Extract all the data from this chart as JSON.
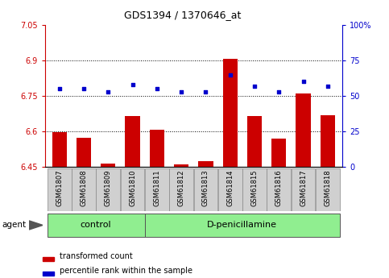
{
  "title": "GDS1394 / 1370646_at",
  "samples": [
    "GSM61807",
    "GSM61808",
    "GSM61809",
    "GSM61810",
    "GSM61811",
    "GSM61812",
    "GSM61813",
    "GSM61814",
    "GSM61815",
    "GSM61816",
    "GSM61817",
    "GSM61818"
  ],
  "red_values": [
    6.597,
    6.572,
    6.462,
    6.665,
    6.607,
    6.461,
    6.475,
    6.907,
    6.665,
    6.57,
    6.762,
    6.667
  ],
  "blue_values": [
    55,
    55,
    53,
    58,
    55,
    53,
    53,
    65,
    57,
    53,
    60,
    57
  ],
  "ylim_left": [
    6.45,
    7.05
  ],
  "ylim_right": [
    0,
    100
  ],
  "yticks_left": [
    6.45,
    6.6,
    6.75,
    6.9,
    7.05
  ],
  "yticks_right": [
    0,
    25,
    50,
    75,
    100
  ],
  "ytick_labels_left": [
    "6.45",
    "6.6",
    "6.75",
    "6.9",
    "7.05"
  ],
  "ytick_labels_right": [
    "0",
    "25",
    "50",
    "75",
    "100%"
  ],
  "hlines": [
    6.6,
    6.75,
    6.9
  ],
  "control_count": 4,
  "group_labels": [
    "control",
    "D-penicillamine"
  ],
  "bar_color": "#cc0000",
  "dot_color": "#0000cc",
  "bar_bottom": 6.45,
  "agent_label": "agent",
  "legend_red": "transformed count",
  "legend_blue": "percentile rank within the sample",
  "left_axis_color": "#cc0000",
  "right_axis_color": "#0000cc",
  "tick_bg_color": "#d0d0d0",
  "group_bg_color": "#90ee90",
  "title_fontsize": 9,
  "axis_fontsize": 7,
  "tick_label_fontsize": 6,
  "group_label_fontsize": 8
}
